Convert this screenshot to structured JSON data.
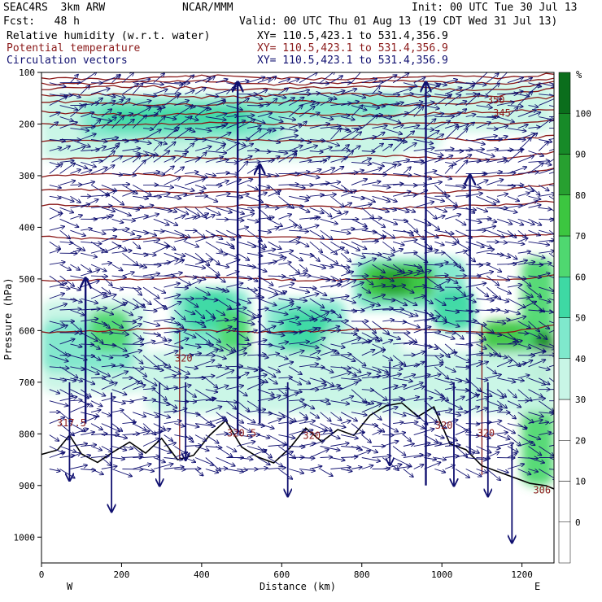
{
  "header": {
    "model": "SEAC4RS  3km ARW",
    "org": "NCAR/MMM",
    "init": "Init: 00 UTC Tue 30 Jul 13",
    "fcst": "Fcst:   48 h",
    "valid": "Valid: 00 UTC Thu 01 Aug 13 (19 CDT Wed 31 Jul 13)",
    "fields": [
      {
        "label": "Relative humidity (w.r.t. water)",
        "xy": "XY= 110.5,423.1 to 531.4,356.9",
        "color": "#000000"
      },
      {
        "label": "Potential temperature",
        "xy": "XY= 110.5,423.1 to 531.4,356.9",
        "color": "#8b1a1a"
      },
      {
        "label": "Circulation vectors",
        "xy": "XY= 110.5,423.1 to 531.4,356.9",
        "color": "#101070"
      }
    ]
  },
  "chart_data": {
    "type": "heatmap",
    "xlabel": "Distance (km)",
    "ylabel": "Pressure (hPa)",
    "xlim": [
      0,
      1280
    ],
    "ylim": [
      1050,
      100
    ],
    "x_ticks": [
      0,
      200,
      400,
      600,
      800,
      1000,
      1200
    ],
    "y_ticks": [
      100,
      200,
      300,
      400,
      500,
      600,
      700,
      800,
      900,
      1000
    ],
    "x_end_labels": {
      "left": "W",
      "right": "E"
    },
    "colorbar": {
      "unit": "%",
      "levels": [
        0,
        10,
        20,
        30,
        40,
        50,
        60,
        70,
        80,
        90,
        100
      ],
      "colors": [
        "#ffffff",
        "#ffffff",
        "#ffffff",
        "#ffffff",
        "#c8f5e6",
        "#7fe8cc",
        "#3ed9a4",
        "#4fd870",
        "#3cc640",
        "#27a030",
        "#178a28",
        "#0b6e1c"
      ]
    },
    "theta_contour_labels": [
      {
        "text": "350",
        "x": 1135,
        "p": 160
      },
      {
        "text": "345",
        "x": 1150,
        "p": 185
      },
      {
        "text": "320",
        "x": 355,
        "p": 660
      },
      {
        "text": "317.5",
        "x": 75,
        "p": 785
      },
      {
        "text": "320.5",
        "x": 500,
        "p": 805
      },
      {
        "text": "320",
        "x": 675,
        "p": 810
      },
      {
        "text": "320",
        "x": 1005,
        "p": 790
      },
      {
        "text": "320",
        "x": 1110,
        "p": 805
      },
      {
        "text": "306",
        "x": 1250,
        "p": 915
      }
    ]
  }
}
